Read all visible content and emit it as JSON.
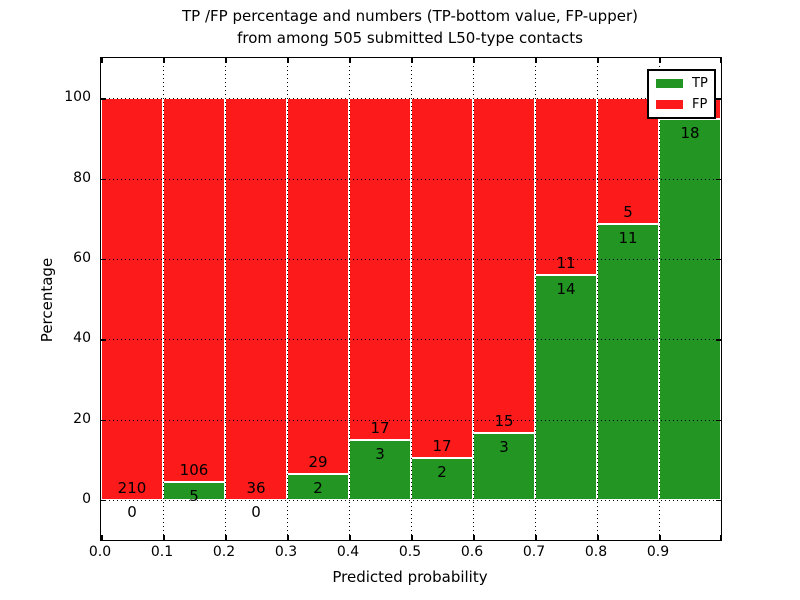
{
  "title": {
    "line1": "TP /FP percentage and numbers (TP-bottom value, FP-upper)",
    "line2": "from among 505 submitted L50-type contacts"
  },
  "chart_data": {
    "type": "bar",
    "stacked": true,
    "title": "TP /FP percentage and numbers (TP-bottom value, FP-upper)\nfrom among 505 submitted L50-type contacts",
    "xlabel": "Predicted probability",
    "ylabel": "Percentage",
    "xlim": [
      0.0,
      1.0
    ],
    "ylim": [
      -10,
      110
    ],
    "grid": "dotted",
    "bin_width": 0.1,
    "total_contacts": 505,
    "categories": [
      "0.0-0.1",
      "0.1-0.2",
      "0.2-0.3",
      "0.3-0.4",
      "0.4-0.5",
      "0.5-0.6",
      "0.6-0.7",
      "0.7-0.8",
      "0.8-0.9",
      "0.9-1.0"
    ],
    "series": [
      {
        "name": "TP",
        "color": "#229522",
        "counts": [
          0,
          5,
          0,
          2,
          3,
          2,
          3,
          14,
          11,
          18
        ]
      },
      {
        "name": "FP",
        "color": "#fc1a1a",
        "counts": [
          210,
          106,
          36,
          29,
          17,
          17,
          15,
          11,
          5,
          1
        ]
      }
    ],
    "tp_percent": [
      0,
      4.5,
      0,
      6.45,
      15.0,
      10.53,
      16.67,
      56.0,
      68.75,
      94.74
    ],
    "bars": [
      {
        "tp_label": "0",
        "fp_label": "210"
      },
      {
        "tp_label": "5",
        "fp_label": "106"
      },
      {
        "tp_label": "0",
        "fp_label": "36"
      },
      {
        "tp_label": "2",
        "fp_label": "29"
      },
      {
        "tp_label": "3",
        "fp_label": "17"
      },
      {
        "tp_label": "2",
        "fp_label": "17"
      },
      {
        "tp_label": "3",
        "fp_label": "15"
      },
      {
        "tp_label": "14",
        "fp_label": "11"
      },
      {
        "tp_label": "11",
        "fp_label": "5"
      },
      {
        "tp_label": "18",
        "fp_label": null
      }
    ],
    "x_tick_labels": [
      "0.0",
      "0.1",
      "0.2",
      "0.3",
      "0.4",
      "0.5",
      "0.6",
      "0.7",
      "0.8",
      "0.9"
    ],
    "y_tick_values": [
      0,
      20,
      40,
      60,
      80,
      100
    ],
    "y_tick_labels": [
      "0",
      "20",
      "40",
      "60",
      "80",
      "100"
    ],
    "legend": {
      "position": "upper right",
      "entries": [
        {
          "label": "TP",
          "color": "#229522"
        },
        {
          "label": "FP",
          "color": "#fc1a1a"
        }
      ]
    }
  }
}
